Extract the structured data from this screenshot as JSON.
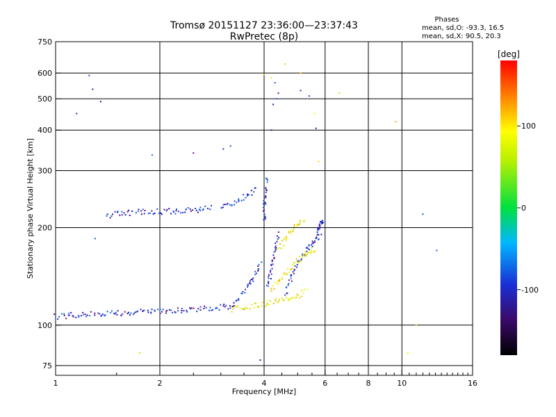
{
  "chart_data": {
    "type": "scatter",
    "title": "Tromsø 20151127 23:36:00—23:37:43",
    "subtitle": "RwPretec (8p)",
    "xlabel": "Frequency [MHz]",
    "ylabel": "Stationary phase Virtual Height [km]",
    "x_scale": "log2",
    "y_scale": "log",
    "xlim": [
      1,
      16
    ],
    "ylim": [
      70,
      750
    ],
    "x_ticks": [
      1,
      2,
      4,
      6,
      8,
      10,
      16
    ],
    "x_tick_labels": [
      "1",
      "2",
      "4",
      "6",
      "8",
      "10",
      "16"
    ],
    "y_ticks": [
      75,
      100,
      200,
      300,
      400,
      500,
      600,
      750
    ],
    "y_tick_labels": [
      "75",
      "100",
      "200",
      "300",
      "400",
      "500",
      "600",
      "750"
    ],
    "grid": true,
    "stats": {
      "title": "Phases",
      "line_o": "mean, sd,O: -93.3, 16.5",
      "line_x": "mean, sd,X:  90.5, 20.3"
    },
    "colorbar": {
      "label": "[deg]",
      "range": [
        -180,
        180
      ],
      "ticks": [
        100,
        0,
        -100
      ],
      "tick_labels": [
        "100",
        "0",
        "-100"
      ]
    },
    "series": [
      {
        "name": "O",
        "color": "#1a2fd6",
        "traces": [
          {
            "x": [
              1.0,
              1.1,
              1.2,
              1.35,
              1.5,
              1.7,
              1.9,
              2.1,
              2.3,
              2.6,
              2.9,
              3.1,
              3.3
            ],
            "y": [
              106,
              107,
              108,
              108.5,
              109,
              109.5,
              110,
              110.5,
              111,
              112,
              113,
              114,
              115
            ]
          },
          {
            "x": [
              3.3,
              3.45,
              3.6,
              3.75,
              3.9
            ],
            "y": [
              118,
              124,
              132,
              142,
              155
            ]
          },
          {
            "x": [
              1.4,
              1.6,
              1.8,
              2.0,
              2.2,
              2.4,
              2.6,
              2.8
            ],
            "y": [
              218,
              222,
              224,
              224,
              225,
              226,
              227,
              230
            ]
          },
          {
            "x": [
              3.0,
              3.2,
              3.4,
              3.6,
              3.8
            ],
            "y": [
              233,
              237,
              245,
              252,
              262
            ]
          },
          {
            "x": [
              4.0,
              4.02,
              4.04,
              4.06
            ],
            "y": [
              210,
              240,
              260,
              285
            ]
          },
          {
            "x": [
              4.1,
              4.2,
              4.3,
              4.4
            ],
            "y": [
              130,
              150,
              170,
              190
            ]
          },
          {
            "x": [
              4.6,
              4.8,
              5.0,
              5.2,
              5.4,
              5.6,
              5.8
            ],
            "y": [
              125,
              140,
              155,
              165,
              175,
              180,
              190
            ]
          },
          {
            "x": [
              5.7,
              5.75,
              5.8,
              5.85,
              5.9
            ],
            "y": [
              185,
              195,
              202,
              206,
              210
            ]
          }
        ],
        "scatter": {
          "x": [
            1.15,
            1.25,
            1.28,
            1.35,
            1.3,
            1.9,
            2.5,
            3.05,
            3.2,
            4.2,
            4.25,
            4.3,
            4.35,
            4.4,
            5.1,
            5.4,
            5.65,
            3.9,
            11.5,
            12.6
          ],
          "y": [
            450,
            590,
            535,
            490,
            185,
            335,
            340,
            350,
            357,
            400,
            480,
            560,
            500,
            520,
            530,
            510,
            405,
            78,
            220,
            170
          ]
        }
      },
      {
        "name": "X",
        "color": "#e6e600",
        "traces": [
          {
            "x": [
              3.2,
              3.5,
              3.8,
              4.1,
              4.4,
              4.7,
              5.0,
              5.3
            ],
            "y": [
              112,
              113,
              115,
              117,
              119,
              121,
              123,
              128
            ]
          },
          {
            "x": [
              4.2,
              4.4,
              4.6,
              4.8,
              5.0,
              5.2,
              5.4,
              5.6
            ],
            "y": [
              128,
              135,
              143,
              150,
              158,
              164,
              168,
              172
            ]
          },
          {
            "x": [
              4.4,
              4.6,
              4.8,
              5.0,
              5.2
            ],
            "y": [
              172,
              185,
              195,
              205,
              210
            ]
          }
        ],
        "scatter": {
          "x": [
            4.0,
            4.2,
            4.6,
            5.1,
            5.6,
            6.6,
            9.6,
            11.0,
            10.4,
            1.75,
            5.75
          ],
          "y": [
            595,
            580,
            640,
            600,
            450,
            520,
            425,
            100,
            82,
            82,
            320
          ]
        }
      }
    ]
  }
}
